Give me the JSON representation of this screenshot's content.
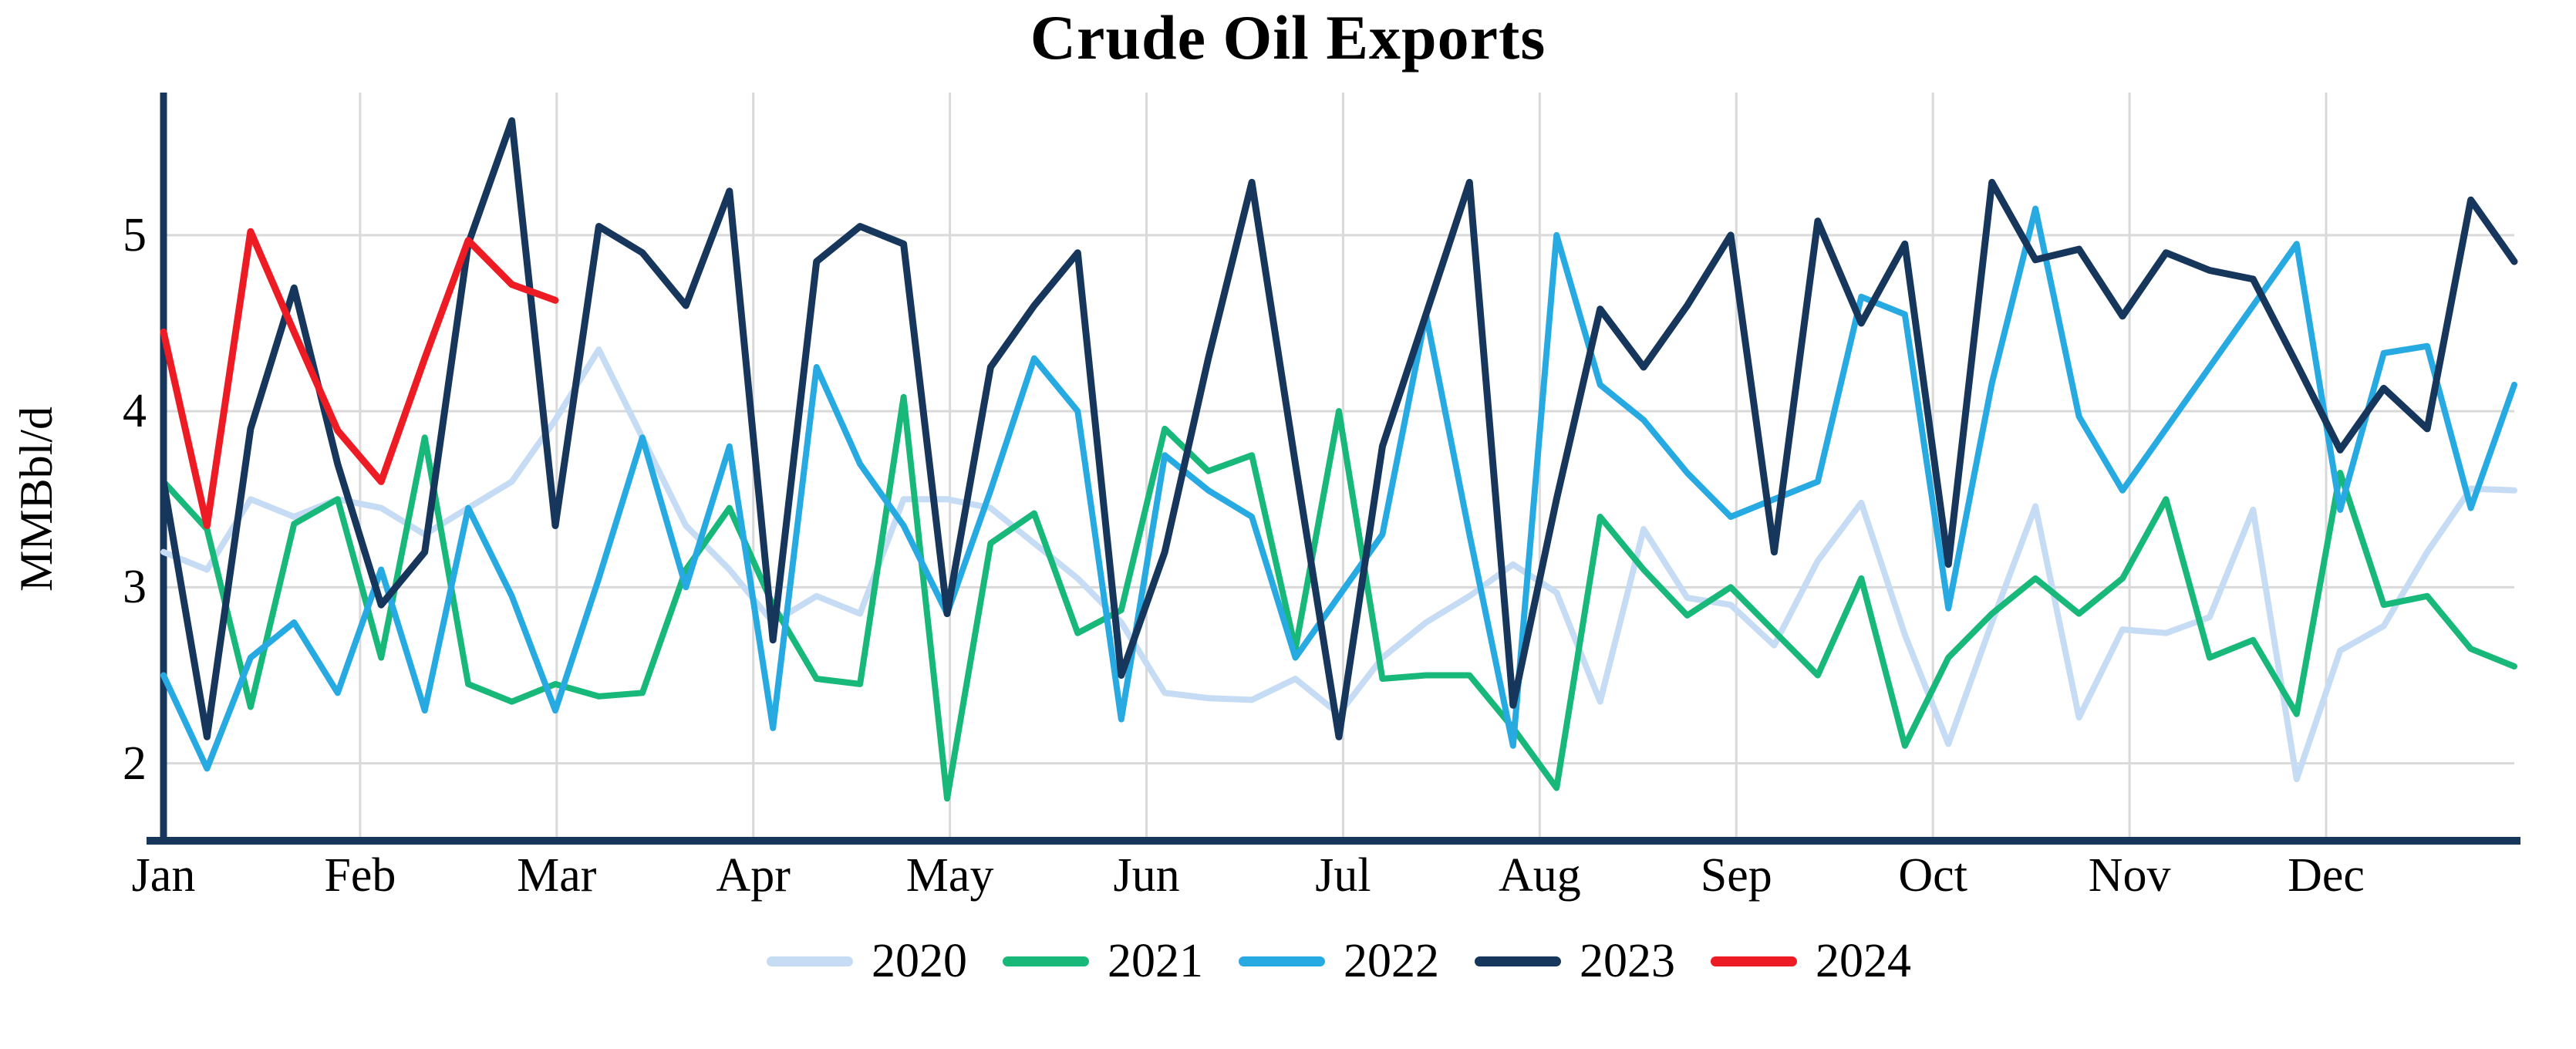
{
  "title": "Crude Oil Exports",
  "chart_data": {
    "type": "line",
    "title": "Crude Oil Exports",
    "xlabel": "",
    "ylabel": "MMBbl/d",
    "x_unit": "weekly observations, Jan through Dec",
    "x_tick_labels": [
      "Jan",
      "Feb",
      "Mar",
      "Apr",
      "May",
      "Jun",
      "Jul",
      "Aug",
      "Sep",
      "Oct",
      "Nov",
      "Dec"
    ],
    "y_ticks": [
      5,
      4,
      3,
      2
    ],
    "ylim": [
      1.56,
      5.81
    ],
    "grid": true,
    "legend_position": "bottom",
    "background": "#ffffff",
    "grid_color": "#d9d9d9",
    "axis_color": "#16365c",
    "series": [
      {
        "name": "2020",
        "color": "#c6dcf4",
        "values": [
          3.2,
          3.1,
          3.5,
          3.4,
          3.5,
          3.45,
          3.3,
          3.45,
          3.6,
          3.95,
          4.35,
          3.85,
          3.35,
          3.1,
          2.8,
          2.95,
          2.85,
          3.5,
          3.5,
          3.45,
          3.25,
          3.05,
          2.8,
          2.4,
          2.37,
          2.36,
          2.48,
          2.28,
          2.6,
          2.8,
          2.95,
          3.13,
          2.97,
          2.35,
          3.33,
          2.94,
          2.9,
          2.67,
          3.15,
          3.48,
          2.73,
          2.11,
          2.8,
          3.46,
          2.26,
          2.76,
          2.74,
          2.83,
          3.44,
          1.91,
          2.64,
          2.78,
          3.2,
          3.56,
          3.55
        ]
      },
      {
        "name": "2021",
        "color": "#18b87a",
        "values": [
          3.6,
          3.33,
          2.32,
          3.36,
          3.5,
          2.6,
          3.85,
          2.45,
          2.35,
          2.45,
          2.38,
          2.4,
          3.1,
          3.45,
          2.9,
          2.48,
          2.45,
          4.08,
          1.8,
          3.25,
          3.42,
          2.74,
          2.87,
          3.9,
          3.66,
          3.75,
          2.65,
          4.0,
          2.48,
          2.5,
          2.5,
          2.2,
          1.86,
          3.4,
          3.1,
          2.84,
          3.0,
          2.75,
          2.5,
          3.05,
          2.1,
          2.6,
          2.85,
          3.05,
          2.85,
          3.05,
          3.5,
          2.6,
          2.7,
          2.28,
          3.65,
          2.9,
          2.95,
          2.65,
          2.55
        ]
      },
      {
        "name": "2022",
        "color": "#27aae1",
        "values": [
          2.5,
          1.97,
          2.6,
          2.8,
          2.4,
          3.1,
          2.3,
          3.45,
          2.95,
          2.3,
          3.05,
          3.85,
          3.0,
          3.8,
          2.2,
          4.25,
          3.7,
          3.35,
          2.85,
          3.55,
          4.3,
          4.0,
          2.25,
          3.75,
          3.55,
          3.4,
          2.6,
          2.95,
          3.3,
          4.55,
          3.3,
          2.1,
          5.0,
          4.15,
          3.95,
          3.65,
          3.4,
          3.5,
          3.6,
          4.65,
          4.55,
          2.88,
          4.16,
          5.15,
          3.97,
          3.55,
          3.9,
          4.25,
          4.6,
          4.95,
          3.44,
          4.33,
          4.37,
          3.45,
          4.15
        ]
      },
      {
        "name": "2023",
        "color": "#16365c",
        "values": [
          3.6,
          2.15,
          3.9,
          4.7,
          3.7,
          2.9,
          3.2,
          4.95,
          5.65,
          3.35,
          5.05,
          4.9,
          4.6,
          5.25,
          2.7,
          4.85,
          5.05,
          4.95,
          2.85,
          4.25,
          4.6,
          4.9,
          2.5,
          3.2,
          4.3,
          5.3,
          3.7,
          2.15,
          3.8,
          4.55,
          5.3,
          2.33,
          3.5,
          4.58,
          4.25,
          4.6,
          5.0,
          3.2,
          5.08,
          4.5,
          4.95,
          3.13,
          5.3,
          4.86,
          4.92,
          4.54,
          4.9,
          4.8,
          4.75,
          4.27,
          3.78,
          4.13,
          3.9,
          5.2,
          4.85
        ]
      },
      {
        "name": "2024",
        "color": "#ed1c24",
        "values": [
          4.45,
          3.35,
          5.02,
          4.45,
          3.89,
          3.6,
          4.3,
          4.97,
          4.72,
          4.63
        ]
      }
    ]
  }
}
